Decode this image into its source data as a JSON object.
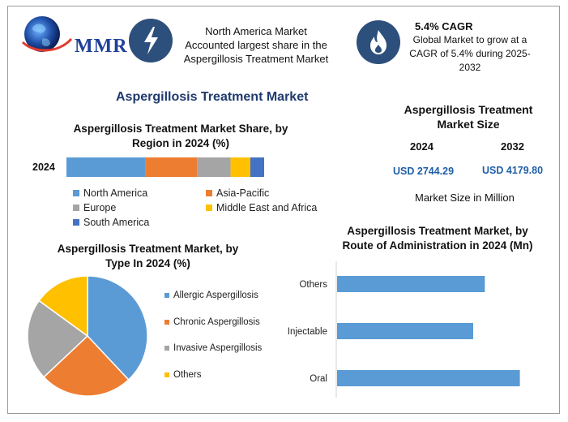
{
  "header": {
    "logo_text": "MMR",
    "box1_text": [
      "North America Market",
      "Accounted largest share in the",
      "Aspergillosis Treatment Market"
    ],
    "box2_title": "5.4% CAGR",
    "box2_text": [
      "Global Market to grow at a",
      "CAGR of 5.4% during 2025-",
      "2032"
    ]
  },
  "main_title": "Aspergillosis Treatment Market",
  "market_size": {
    "title": [
      "Aspergillosis Treatment",
      "Market Size"
    ],
    "years": [
      "2024",
      "2032"
    ],
    "values": [
      "USD 2744.29",
      "USD 4179.80"
    ],
    "unit_label": "Market Size in Million"
  },
  "chart_data": [
    {
      "type": "bar",
      "stacked": true,
      "orientation": "horizontal",
      "title": [
        "Aspergillosis Treatment Market Share, by",
        "Region in 2024 (%)"
      ],
      "categories": [
        "2024"
      ],
      "series": [
        {
          "name": "North America",
          "values": [
            40
          ]
        },
        {
          "name": "Asia-Pacific",
          "values": [
            26
          ]
        },
        {
          "name": "Europe",
          "values": [
            17
          ]
        },
        {
          "name": "Middle East and Africa",
          "values": [
            10
          ]
        },
        {
          "name": "South America",
          "values": [
            7
          ]
        }
      ],
      "legend_position": "bottom"
    },
    {
      "type": "pie",
      "title": [
        "Aspergillosis Treatment Market, by",
        "Type In 2024 (%)"
      ],
      "labels": [
        "Allergic Aspergillosis",
        "Chronic Aspergillosis",
        "Invasive Aspergillosis",
        "Others"
      ],
      "values": [
        38,
        25,
        22,
        15
      ],
      "legend_position": "right"
    },
    {
      "type": "bar",
      "orientation": "horizontal",
      "title": [
        "Aspergillosis Treatment Market, by",
        "Route of Administration in 2024 (Mn)"
      ],
      "categories": [
        "Others",
        "Injectable",
        "Oral"
      ],
      "values": [
        760,
        700,
        940
      ],
      "xlim": [
        0,
        1000
      ]
    }
  ],
  "colors": {
    "blue": "#5b9bd5",
    "orange": "#ed7d31",
    "gray": "#a5a5a5",
    "yellow": "#ffc000",
    "darkblue": "#4472c4",
    "icon_bg": "#2d4f7c",
    "title": "#1f3a6e",
    "value": "#1f5fa8"
  }
}
